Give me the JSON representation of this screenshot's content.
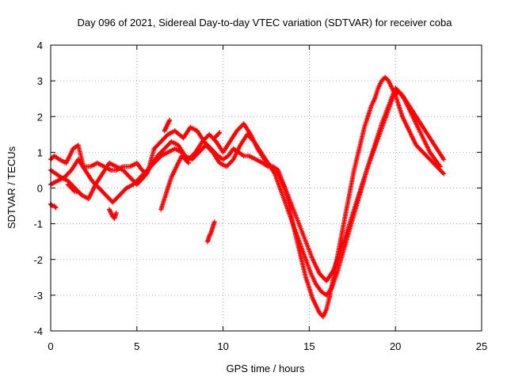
{
  "chart_data": {
    "type": "scatter",
    "title": "Day 096 of 2021, Sidereal Day-to-day VTEC variation (SDTVAR) for receiver coba",
    "xlabel": "GPS time / hours",
    "ylabel": "SDTVAR / TECUs",
    "xlim": [
      0,
      25
    ],
    "ylim": [
      -4,
      4
    ],
    "x_ticks": [
      0,
      5,
      10,
      15,
      20,
      25
    ],
    "y_ticks": [
      -4,
      -3,
      -2,
      -1,
      0,
      1,
      2,
      3,
      4
    ],
    "x_tick_labels": [
      "0",
      "5",
      "10",
      "15",
      "20",
      "25"
    ],
    "y_tick_labels": [
      "-4",
      "-3",
      "-2",
      "-1",
      "0",
      "1",
      "2",
      "3",
      "4"
    ],
    "grid": true,
    "marker": "plus",
    "color": "#ff0000",
    "series": [
      {
        "x": [
          0.0,
          0.2,
          0.5,
          0.9,
          1.3,
          1.6,
          1.9,
          2.3,
          2.7,
          3.1,
          3.5,
          3.8,
          4.2,
          4.6,
          5.0,
          5.3,
          5.6,
          6.0,
          6.4,
          6.8,
          7.2,
          7.7,
          8.1,
          8.5,
          8.9,
          9.3,
          9.7,
          10.0,
          10.3,
          10.6,
          10.9,
          11.2,
          11.5,
          11.9,
          12.3,
          12.6,
          12.9,
          13.2,
          13.5,
          13.8,
          14.0,
          14.2,
          14.4,
          14.6,
          14.8,
          15.0,
          15.2,
          15.4,
          15.6,
          15.8,
          16.0,
          16.2,
          16.4,
          16.6,
          16.8,
          17.0,
          17.2,
          17.4,
          17.6,
          17.8,
          18.0,
          18.2,
          18.4,
          18.6,
          18.8,
          19.0,
          19.2,
          19.4,
          19.6,
          19.8,
          20.0,
          20.2,
          20.4,
          20.6,
          20.8,
          21.0,
          21.2,
          21.4,
          21.6,
          21.8,
          22.0,
          22.2,
          22.4,
          22.6,
          22.8
        ],
        "y": [
          0.8,
          0.9,
          0.8,
          0.7,
          1.1,
          1.2,
          0.6,
          0.6,
          0.7,
          0.6,
          0.5,
          0.5,
          0.6,
          0.6,
          0.7,
          0.5,
          0.4,
          1.1,
          1.3,
          1.5,
          1.6,
          1.4,
          1.7,
          1.6,
          1.3,
          1.1,
          0.9,
          0.8,
          0.9,
          1.1,
          1.0,
          0.9,
          0.9,
          0.8,
          0.7,
          0.6,
          0.6,
          0.5,
          0.1,
          -0.4,
          -0.9,
          -1.3,
          -1.7,
          -2.1,
          -2.5,
          -2.8,
          -3.1,
          -3.3,
          -3.5,
          -3.6,
          -3.4,
          -3.0,
          -2.5,
          -2.0,
          -1.5,
          -1.0,
          -0.5,
          0.0,
          0.5,
          0.9,
          1.3,
          1.7,
          2.0,
          2.3,
          2.5,
          2.8,
          3.0,
          3.1,
          3.0,
          2.8,
          2.6,
          2.3,
          2.0,
          1.8,
          1.6,
          1.4,
          1.2,
          1.1,
          1.0,
          0.9,
          0.8,
          0.7,
          0.6,
          0.5,
          0.4
        ]
      },
      {
        "x": [
          0.0,
          0.3,
          0.6,
          1.0,
          1.4,
          1.8,
          2.2,
          2.6,
          3.0,
          3.4,
          3.8,
          4.2,
          4.6,
          5.0,
          5.4,
          5.8,
          6.2,
          6.6,
          7.0,
          7.4,
          7.8,
          8.2,
          8.6,
          9.0,
          9.4,
          9.8,
          10.2,
          10.6,
          11.0,
          11.4,
          11.8,
          12.2,
          12.6,
          13.0,
          13.3,
          13.6,
          13.9,
          14.2,
          14.5,
          14.8,
          15.1,
          15.4,
          15.7,
          16.0,
          16.3,
          16.6,
          16.9,
          17.2,
          17.5,
          17.8,
          18.1,
          18.4,
          18.7,
          19.0,
          19.3,
          19.6,
          19.9,
          20.2,
          20.5,
          20.8,
          21.1,
          21.4,
          21.7,
          22.0,
          22.3,
          22.6
        ],
        "y": [
          0.5,
          0.4,
          0.3,
          0.2,
          0.0,
          -0.2,
          -0.3,
          0.1,
          0.4,
          0.7,
          0.6,
          0.5,
          0.3,
          0.1,
          0.3,
          0.6,
          0.9,
          1.1,
          1.3,
          1.2,
          0.9,
          0.8,
          1.0,
          1.2,
          1.0,
          0.7,
          0.6,
          0.8,
          1.2,
          1.5,
          1.3,
          1.0,
          0.7,
          0.4,
          0.0,
          -0.4,
          -0.8,
          -1.2,
          -1.6,
          -2.0,
          -2.4,
          -2.7,
          -2.9,
          -3.0,
          -2.8,
          -2.4,
          -1.9,
          -1.4,
          -0.9,
          -0.4,
          0.1,
          0.6,
          1.0,
          1.4,
          1.8,
          2.2,
          2.6,
          2.7,
          2.5,
          2.2,
          1.9,
          1.6,
          1.3,
          1.0,
          0.8,
          0.6
        ]
      },
      {
        "x": [
          0.0,
          0.4,
          0.8,
          1.2,
          1.6,
          2.0,
          2.4,
          2.8,
          3.2,
          3.6,
          4.0,
          4.4,
          4.8,
          5.2,
          5.6,
          6.0,
          6.4,
          6.8,
          7.2,
          7.6,
          8.0,
          8.4,
          8.8,
          9.2,
          9.6,
          10.0,
          10.4,
          10.8,
          11.2,
          11.6,
          12.0,
          12.4,
          12.8,
          13.2,
          13.6,
          14.0,
          14.4,
          14.8,
          15.2,
          15.6,
          16.0,
          16.4,
          16.8,
          17.2,
          17.6,
          18.0,
          18.4,
          18.8,
          19.2,
          19.6,
          20.0,
          20.4,
          20.8,
          21.2,
          21.6,
          22.0,
          22.4,
          22.8
        ],
        "y": [
          0.1,
          0.2,
          0.3,
          0.5,
          0.8,
          0.5,
          0.2,
          0.0,
          -0.2,
          -0.4,
          -0.2,
          0.0,
          0.1,
          0.3,
          0.5,
          0.7,
          0.9,
          1.0,
          1.1,
          1.0,
          0.8,
          1.0,
          1.3,
          1.5,
          1.3,
          1.0,
          1.3,
          1.6,
          1.8,
          1.5,
          1.1,
          0.8,
          0.6,
          0.4,
          0.0,
          -0.5,
          -1.0,
          -1.5,
          -2.0,
          -2.4,
          -2.6,
          -2.3,
          -1.8,
          -1.2,
          -0.6,
          0.0,
          0.6,
          1.2,
          1.8,
          2.3,
          2.8,
          2.6,
          2.3,
          2.0,
          1.7,
          1.4,
          1.1,
          0.8
        ]
      },
      {
        "x": [
          3.4,
          3.5,
          3.6,
          3.7,
          3.8
        ],
        "y": [
          -0.6,
          -0.7,
          -0.8,
          -0.85,
          -0.7
        ]
      },
      {
        "x": [
          6.4,
          6.6,
          6.8,
          7.0,
          7.2,
          7.4,
          7.6,
          7.8,
          8.0
        ],
        "y": [
          -0.6,
          -0.3,
          0.0,
          0.3,
          0.5,
          0.7,
          0.9,
          0.8,
          0.7
        ]
      },
      {
        "x": [
          0.0,
          0.1,
          0.2,
          0.3
        ],
        "y": [
          -0.45,
          -0.5,
          -0.5,
          -0.55
        ]
      },
      {
        "x": [
          9.1,
          9.2,
          9.3,
          9.4,
          9.5
        ],
        "y": [
          -1.5,
          -1.35,
          -1.25,
          -1.1,
          -0.95
        ]
      },
      {
        "x": [
          1.0,
          1.2,
          1.4,
          1.6,
          1.8
        ],
        "y": [
          0.1,
          0.0,
          -0.1,
          -0.1,
          -0.2
        ]
      },
      {
        "x": [
          9.5,
          9.6,
          9.7,
          9.8
        ],
        "y": [
          1.4,
          1.45,
          1.5,
          1.55
        ]
      },
      {
        "x": [
          6.6,
          6.7,
          6.8,
          6.9
        ],
        "y": [
          1.6,
          1.7,
          1.8,
          1.9
        ]
      }
    ]
  }
}
